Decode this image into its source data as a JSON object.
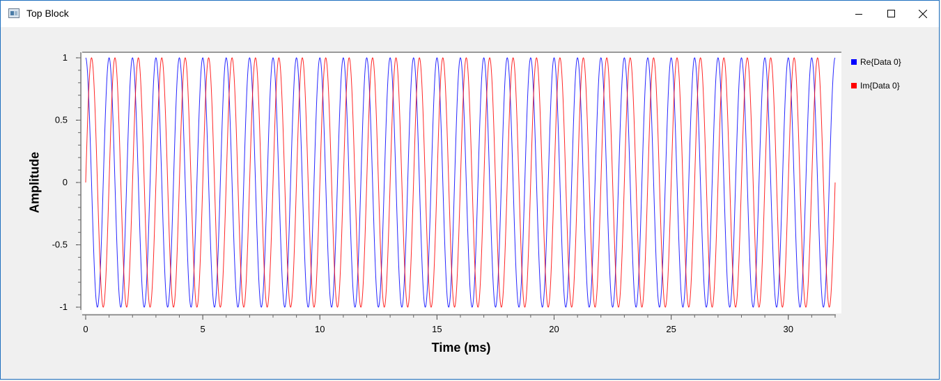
{
  "window": {
    "title": "Top Block",
    "controls": [
      "minimize",
      "maximize",
      "close"
    ]
  },
  "chart_data": {
    "type": "line",
    "xlabel": "Time (ms)",
    "ylabel": "Amplitude",
    "xlim": [
      0,
      32
    ],
    "ylim": [
      -1,
      1
    ],
    "x_ticks": [
      0,
      5,
      10,
      15,
      20,
      25,
      30
    ],
    "y_ticks": [
      1,
      0.5,
      0,
      -0.5,
      -1
    ],
    "y_tick_labels": [
      "1",
      "0.5",
      "0",
      "-0.5",
      "-1"
    ],
    "grid": false,
    "legend_position": "right",
    "series": [
      {
        "name": "Re{Data 0}",
        "color": "#0000ff",
        "frequency_khz": 1.0,
        "phase": "cosine",
        "x_range": [
          0,
          32
        ]
      },
      {
        "name": "Im{Data 0}",
        "color": "#ff0000",
        "frequency_khz": 1.0,
        "phase": "sine",
        "x_range": [
          0,
          32
        ]
      }
    ]
  }
}
